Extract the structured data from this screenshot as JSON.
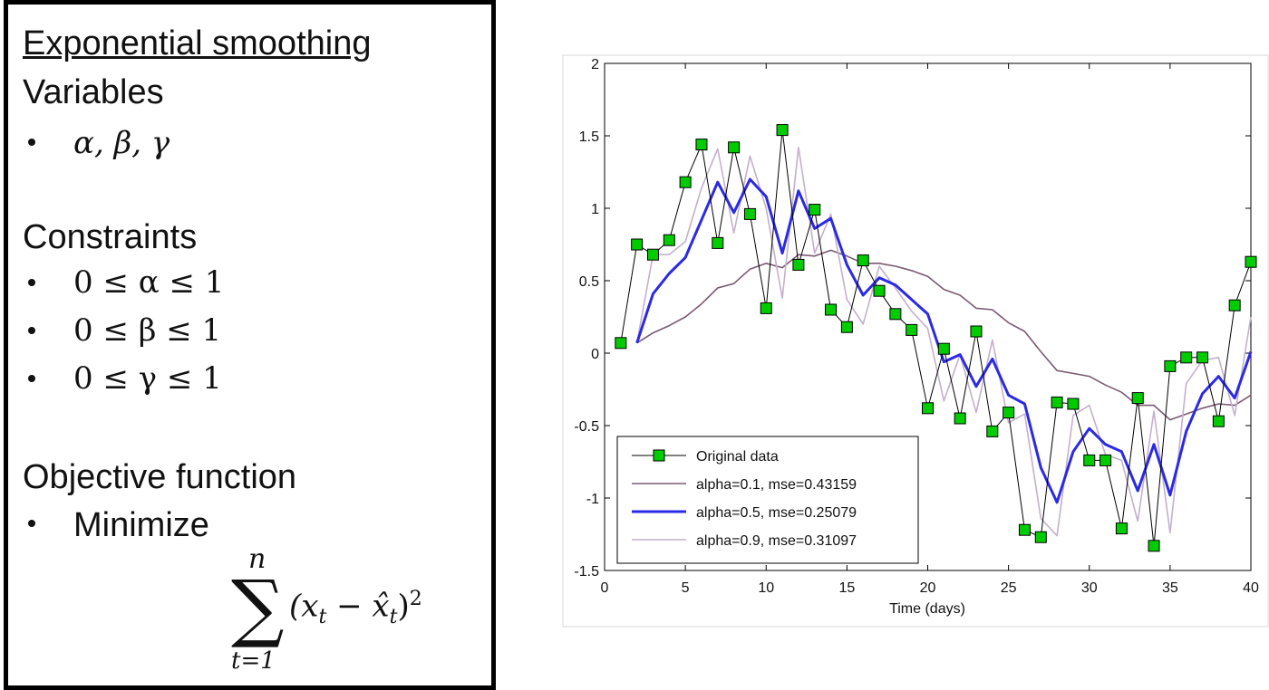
{
  "panel": {
    "title": "Exponential smoothing",
    "sections": [
      {
        "heading": "Variables",
        "items": [
          "α, β, γ"
        ]
      },
      {
        "heading": "Constraints",
        "items": [
          "0 ≤ α ≤ 1",
          "0 ≤ β ≤ 1",
          "0 ≤ γ ≤ 1"
        ]
      },
      {
        "heading": "Objective function",
        "items": [
          "Minimize"
        ]
      }
    ],
    "formula": {
      "operator": "∑",
      "upper": "n",
      "lower": "t=1",
      "open": "(x",
      "sub1": "t",
      "minus": " − ",
      "hat": "x̂",
      "sub2": "t",
      "close": ")",
      "power": "2"
    }
  },
  "chart_data": {
    "type": "line",
    "xlabel": "Time (days)",
    "xlim": [
      0,
      40
    ],
    "xticks": [
      0,
      5,
      10,
      15,
      20,
      25,
      30,
      35,
      40
    ],
    "ylim": [
      -1.5,
      2
    ],
    "yticks": [
      -1.5,
      -1,
      -0.5,
      0,
      0.5,
      1,
      1.5,
      2
    ],
    "grid": false,
    "legend": "lower left",
    "series": [
      {
        "name": "Original data",
        "color": "#000000",
        "marker_color": "#00cc00",
        "x": [
          1,
          2,
          3,
          4,
          5,
          6,
          7,
          8,
          9,
          10,
          11,
          12,
          13,
          14,
          15,
          16,
          17,
          18,
          19,
          20,
          21,
          22,
          23,
          24,
          25,
          26,
          27,
          28,
          29,
          30,
          31,
          32,
          33,
          34,
          35,
          36,
          37,
          38,
          39,
          40
        ],
        "values": [
          0.07,
          0.75,
          0.68,
          0.78,
          1.18,
          1.44,
          0.76,
          1.42,
          0.96,
          0.31,
          1.54,
          0.61,
          0.99,
          0.3,
          0.18,
          0.64,
          0.43,
          0.27,
          0.16,
          -0.38,
          0.03,
          -0.45,
          0.15,
          -0.54,
          -0.41,
          -1.22,
          -1.27,
          -0.34,
          -0.35,
          -0.74,
          -0.74,
          -1.21,
          -0.31,
          -1.33,
          -0.09,
          -0.03,
          -0.03,
          -0.47,
          0.33,
          0.63
        ]
      },
      {
        "name": "alpha=0.1, mse=0.43159",
        "color": "#7a5a72",
        "x": [
          2,
          3,
          4,
          5,
          6,
          7,
          8,
          9,
          10,
          11,
          12,
          13,
          14,
          15,
          16,
          17,
          18,
          19,
          20,
          21,
          22,
          23,
          24,
          25,
          26,
          27,
          28,
          29,
          30,
          31,
          32,
          33,
          34,
          35,
          36,
          37,
          38,
          39,
          40
        ],
        "values": [
          0.07,
          0.14,
          0.19,
          0.25,
          0.34,
          0.45,
          0.48,
          0.58,
          0.62,
          0.59,
          0.68,
          0.67,
          0.71,
          0.67,
          0.62,
          0.62,
          0.6,
          0.57,
          0.53,
          0.44,
          0.4,
          0.31,
          0.3,
          0.21,
          0.15,
          0.01,
          -0.12,
          -0.14,
          -0.16,
          -0.22,
          -0.27,
          -0.36,
          -0.36,
          -0.46,
          -0.42,
          -0.38,
          -0.35,
          -0.36,
          -0.29
        ]
      },
      {
        "name": "alpha=0.5, mse=0.25079",
        "color": "#2a2ae6",
        "x": [
          2,
          3,
          4,
          5,
          6,
          7,
          8,
          9,
          10,
          11,
          12,
          13,
          14,
          15,
          16,
          17,
          18,
          19,
          20,
          21,
          22,
          23,
          24,
          25,
          26,
          27,
          28,
          29,
          30,
          31,
          32,
          33,
          34,
          35,
          36,
          37,
          38,
          39,
          40
        ],
        "values": [
          0.07,
          0.41,
          0.55,
          0.66,
          0.92,
          1.18,
          0.97,
          1.2,
          1.08,
          0.69,
          1.12,
          0.86,
          0.93,
          0.61,
          0.4,
          0.52,
          0.47,
          0.37,
          0.27,
          -0.06,
          -0.01,
          -0.23,
          -0.04,
          -0.29,
          -0.35,
          -0.79,
          -1.03,
          -0.68,
          -0.52,
          -0.63,
          -0.68,
          -0.95,
          -0.63,
          -0.98,
          -0.54,
          -0.28,
          -0.16,
          -0.31,
          0.01
        ]
      },
      {
        "name": "alpha=0.9, mse=0.31097",
        "color": "#c4b0cc",
        "x": [
          2,
          3,
          4,
          5,
          6,
          7,
          8,
          9,
          10,
          11,
          12,
          13,
          14,
          15,
          16,
          17,
          18,
          19,
          20,
          21,
          22,
          23,
          24,
          25,
          26,
          27,
          28,
          29,
          30,
          31,
          32,
          33,
          34,
          35,
          36,
          37,
          38,
          39,
          40
        ],
        "values": [
          0.07,
          0.68,
          0.68,
          0.77,
          1.14,
          1.41,
          0.83,
          1.36,
          1.0,
          0.38,
          1.42,
          0.69,
          0.96,
          0.37,
          0.2,
          0.6,
          0.45,
          0.29,
          0.17,
          -0.33,
          -0.01,
          -0.41,
          0.09,
          -0.48,
          -0.42,
          -1.14,
          -1.26,
          -0.43,
          -0.36,
          -0.7,
          -0.74,
          -1.16,
          -0.4,
          -1.24,
          -0.21,
          -0.05,
          -0.03,
          -0.43,
          0.25
        ]
      }
    ]
  }
}
